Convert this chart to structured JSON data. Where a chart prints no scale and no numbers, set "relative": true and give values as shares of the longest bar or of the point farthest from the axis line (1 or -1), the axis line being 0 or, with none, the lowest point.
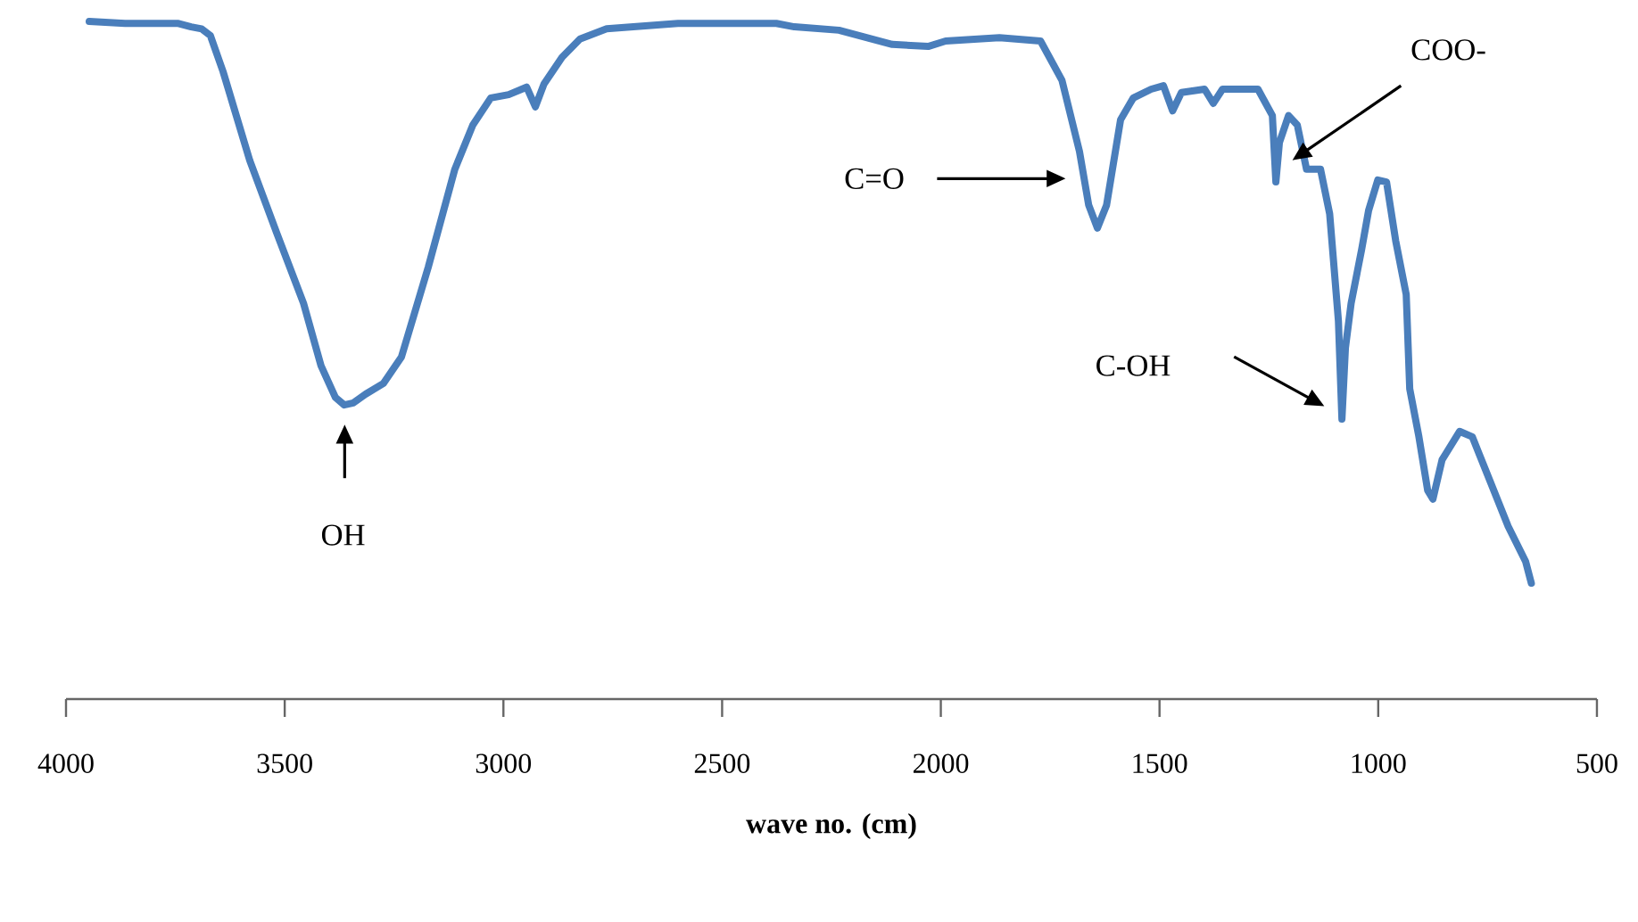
{
  "chart_data": {
    "type": "line",
    "relative": true,
    "xlabel": "wave no. (cm)",
    "x": [
      3947,
      3865,
      3743,
      3714,
      3690,
      3670,
      3641,
      3580,
      3519,
      3457,
      3417,
      3384,
      3364,
      3343,
      3315,
      3274,
      3233,
      3172,
      3111,
      3070,
      3029,
      2988,
      2947,
      2927,
      2907,
      2866,
      2825,
      2764,
      2601,
      2376,
      2335,
      2233,
      2111,
      2029,
      1989,
      1866,
      1772,
      1723,
      1683,
      1662,
      1642,
      1621,
      1589,
      1560,
      1519,
      1491,
      1470,
      1450,
      1397,
      1377,
      1356,
      1275,
      1242,
      1234,
      1226,
      1205,
      1185,
      1164,
      1132,
      1111,
      1091,
      1083,
      1075,
      1062,
      1038,
      1022,
      1001,
      981,
      960,
      936,
      928,
      907,
      887,
      875,
      854,
      814,
      785,
      744,
      703,
      663,
      650
    ],
    "series": [
      {
        "color": "#4a7ebb",
        "values": [
          1.0,
          0.997,
          0.997,
          0.992,
          0.989,
          0.979,
          0.926,
          0.795,
          0.689,
          0.584,
          0.492,
          0.445,
          0.434,
          0.437,
          0.45,
          0.466,
          0.505,
          0.637,
          0.782,
          0.847,
          0.887,
          0.892,
          0.903,
          0.874,
          0.908,
          0.947,
          0.974,
          0.989,
          0.997,
          0.997,
          0.992,
          0.987,
          0.966,
          0.963,
          0.971,
          0.976,
          0.971,
          0.913,
          0.808,
          0.729,
          0.695,
          0.729,
          0.855,
          0.887,
          0.9,
          0.905,
          0.868,
          0.895,
          0.9,
          0.879,
          0.9,
          0.9,
          0.861,
          0.763,
          0.821,
          0.861,
          0.847,
          0.782,
          0.782,
          0.716,
          0.558,
          0.413,
          0.518,
          0.584,
          0.663,
          0.721,
          0.766,
          0.763,
          0.676,
          0.597,
          0.458,
          0.387,
          0.308,
          0.295,
          0.353,
          0.395,
          0.387,
          0.321,
          0.255,
          0.203,
          0.171
        ]
      }
    ],
    "xlim": [
      4000,
      500
    ],
    "xticks": [
      4000,
      3500,
      3000,
      2500,
      2000,
      1500,
      1000,
      500
    ],
    "annotations": [
      "OH",
      "C=O",
      "COO-",
      "C-OH"
    ]
  }
}
